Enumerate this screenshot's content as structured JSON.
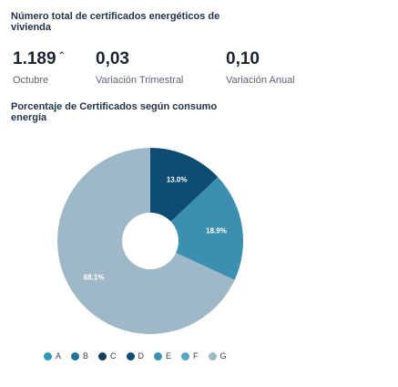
{
  "title": "Número total de certificados energéticos de vivienda",
  "kpis": [
    {
      "value": "1.189",
      "trend_icon": "up-arrow-icon",
      "label": "Octubre"
    },
    {
      "value": "0,03",
      "label": "Variación Trimestral"
    },
    {
      "value": "0,10",
      "label": "Variación Anual"
    }
  ],
  "chart_data": {
    "type": "pie",
    "title": "Porcentaje de Certificados según consumo energía",
    "donut": true,
    "categories": [
      "A",
      "B",
      "C",
      "D",
      "E",
      "F",
      "G"
    ],
    "values": [
      0,
      0,
      0,
      13.0,
      18.9,
      0,
      68.1
    ],
    "data_labels": [
      "",
      "",
      "",
      "13.0%",
      "18.9%",
      "",
      "68.1%"
    ],
    "colors": [
      "#2a9bb0",
      "#1f6f99",
      "#173e5c",
      "#0f4c73",
      "#3d8fb0",
      "#5aa3c2",
      "#9fb8c8"
    ],
    "legend_position": "bottom"
  }
}
